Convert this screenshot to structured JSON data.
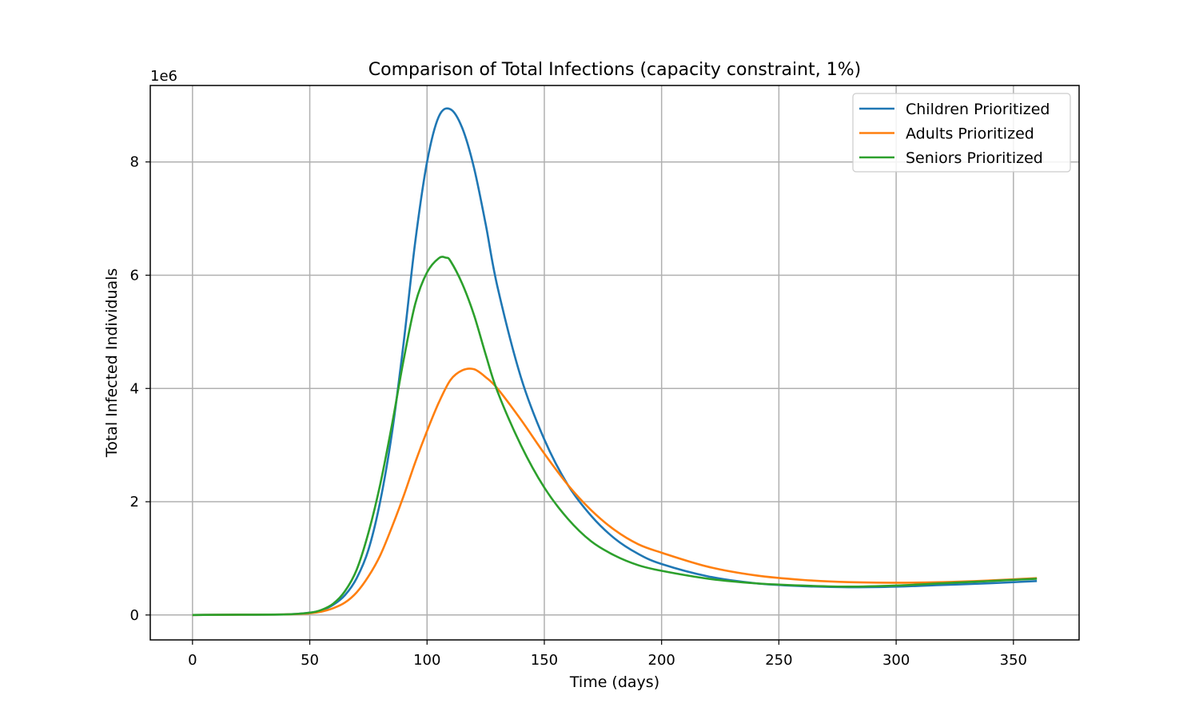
{
  "chart_data": {
    "type": "line",
    "title": "Comparison of Total Infections (capacity constraint, 1%)",
    "xlabel": "Time (days)",
    "ylabel": "Total Infected Individuals",
    "y_offset_label": "1e6",
    "xlim": [
      -18,
      378
    ],
    "ylim": [
      -0.44,
      9.35
    ],
    "xticks": [
      0,
      50,
      100,
      150,
      200,
      250,
      300,
      350
    ],
    "yticks": [
      0,
      2,
      4,
      6,
      8
    ],
    "grid": true,
    "legend_position": "top-right",
    "series": [
      {
        "name": "Children Prioritized",
        "color": "#1f77b4",
        "x": [
          0,
          20,
          40,
          50,
          55,
          60,
          65,
          70,
          75,
          80,
          85,
          90,
          95,
          100,
          105,
          110,
          115,
          120,
          125,
          130,
          140,
          150,
          160,
          170,
          180,
          190,
          200,
          220,
          240,
          260,
          280,
          300,
          320,
          340,
          360
        ],
        "y": [
          0,
          0.005,
          0.01,
          0.04,
          0.08,
          0.18,
          0.35,
          0.65,
          1.15,
          2.0,
          3.2,
          4.8,
          6.6,
          8.0,
          8.8,
          8.93,
          8.6,
          7.9,
          6.9,
          5.8,
          4.2,
          3.1,
          2.3,
          1.75,
          1.35,
          1.08,
          0.9,
          0.68,
          0.56,
          0.51,
          0.49,
          0.5,
          0.53,
          0.56,
          0.6
        ]
      },
      {
        "name": "Adults Prioritized",
        "color": "#ff7f0e",
        "x": [
          0,
          20,
          40,
          50,
          55,
          60,
          65,
          70,
          75,
          80,
          85,
          90,
          95,
          100,
          105,
          110,
          115,
          120,
          125,
          130,
          140,
          150,
          160,
          170,
          180,
          190,
          200,
          220,
          240,
          260,
          280,
          300,
          320,
          340,
          360
        ],
        "y": [
          0,
          0.005,
          0.01,
          0.03,
          0.06,
          0.12,
          0.22,
          0.4,
          0.68,
          1.05,
          1.55,
          2.1,
          2.7,
          3.25,
          3.75,
          4.15,
          4.32,
          4.34,
          4.2,
          4.0,
          3.45,
          2.85,
          2.3,
          1.85,
          1.5,
          1.25,
          1.1,
          0.85,
          0.7,
          0.62,
          0.58,
          0.57,
          0.58,
          0.61,
          0.65
        ]
      },
      {
        "name": "Seniors Prioritized",
        "color": "#2ca02c",
        "x": [
          0,
          20,
          40,
          50,
          55,
          60,
          65,
          70,
          75,
          80,
          85,
          90,
          95,
          100,
          105,
          108,
          110,
          115,
          120,
          125,
          130,
          140,
          150,
          160,
          170,
          180,
          190,
          200,
          220,
          240,
          260,
          280,
          300,
          320,
          340,
          360
        ],
        "y": [
          0,
          0.005,
          0.01,
          0.04,
          0.09,
          0.2,
          0.42,
          0.8,
          1.45,
          2.3,
          3.35,
          4.5,
          5.5,
          6.05,
          6.3,
          6.31,
          6.25,
          5.85,
          5.3,
          4.6,
          3.95,
          3.0,
          2.25,
          1.7,
          1.3,
          1.05,
          0.88,
          0.78,
          0.64,
          0.56,
          0.52,
          0.5,
          0.52,
          0.56,
          0.6,
          0.64
        ]
      }
    ]
  }
}
